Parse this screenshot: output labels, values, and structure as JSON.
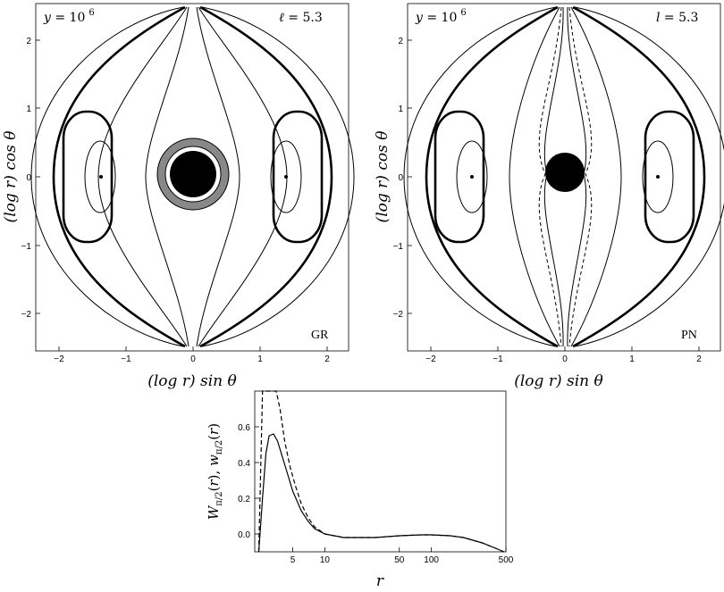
{
  "figure": {
    "panels": [
      {
        "id": "GR",
        "corner_tag": "GR",
        "top_left": {
          "var": "y",
          "eq": " = 10",
          "exp": "6"
        },
        "top_right": {
          "var": "ℓ",
          "eq": " = 5.3"
        },
        "xlabel": "(log r) sin θ",
        "ylabel": "(log r) cos θ",
        "xticks": [
          "−2",
          "−1",
          "0",
          "1",
          "2"
        ],
        "yticks": [
          "2",
          "1",
          "0",
          "−1",
          "−2"
        ]
      },
      {
        "id": "PN",
        "corner_tag": "PN",
        "top_left": {
          "var": "y",
          "eq": " = 10",
          "exp": "6"
        },
        "top_right": {
          "var": "l",
          "eq": " = 5.3"
        },
        "xlabel": "(log r) sin θ",
        "ylabel": "(log r) cos θ",
        "xticks": [
          "−2",
          "−1",
          "0",
          "1",
          "2"
        ],
        "yticks": [
          "2",
          "1",
          "0",
          "−1",
          "−2"
        ]
      }
    ],
    "bottom": {
      "ylabel": "W_{π/2}(r), w_{π/2}(r)",
      "xlabel": "r",
      "xticks": [
        "5",
        "10",
        "50",
        "100",
        "500"
      ],
      "yticks": [
        "0.6",
        "0.4",
        "0.2",
        "0.0"
      ]
    }
  },
  "chart_data": [
    {
      "type": "contour",
      "panel": "GR",
      "x_axis": "(log r) sin θ",
      "y_axis": "(log r) cos θ",
      "xlim": [
        -2.3,
        2.3
      ],
      "ylim": [
        -2.6,
        2.6
      ],
      "center_points": [
        [
          -1.35,
          0
        ],
        [
          1.35,
          0
        ]
      ]
    },
    {
      "type": "contour",
      "panel": "PN",
      "x_axis": "(log r) sin θ",
      "y_axis": "(log r) cos θ",
      "xlim": [
        -2.3,
        2.3
      ],
      "ylim": [
        -2.6,
        2.6
      ],
      "center_points": [
        [
          -1.35,
          0
        ],
        [
          1.35,
          0
        ]
      ]
    },
    {
      "type": "line",
      "panel": "bottom",
      "x_axis": "r",
      "y_axis": "W_{π/2}(r), w_{π/2}(r)",
      "xscale": "log",
      "xlim": [
        2.2,
        500
      ],
      "ylim": [
        -0.1,
        0.8
      ],
      "series": [
        {
          "style": "solid",
          "x": [
            2.4,
            2.6,
            2.8,
            3.0,
            3.3,
            3.6,
            4.0,
            4.5,
            5,
            6,
            7,
            8,
            10,
            15,
            20,
            30,
            50,
            80,
            100,
            150,
            200,
            300,
            400,
            480
          ],
          "y": [
            -0.1,
            0.2,
            0.45,
            0.55,
            0.56,
            0.52,
            0.43,
            0.33,
            0.24,
            0.13,
            0.07,
            0.03,
            0.0,
            -0.02,
            -0.02,
            -0.02,
            -0.01,
            -0.005,
            -0.005,
            -0.01,
            -0.02,
            -0.05,
            -0.08,
            -0.1
          ]
        },
        {
          "style": "dashed",
          "x": [
            2.4,
            2.6,
            2.8,
            3.2,
            3.5,
            3.8,
            4.2,
            4.7,
            5.3,
            6,
            7,
            8,
            10,
            15,
            20,
            30,
            50,
            80,
            100,
            150,
            200,
            300,
            400,
            480
          ],
          "y": [
            -0.1,
            0.8,
            0.8,
            0.8,
            0.8,
            0.7,
            0.52,
            0.38,
            0.27,
            0.17,
            0.09,
            0.04,
            0.0,
            -0.02,
            -0.02,
            -0.02,
            -0.01,
            -0.005,
            -0.005,
            -0.01,
            -0.02,
            -0.05,
            -0.08,
            -0.1
          ]
        }
      ]
    }
  ]
}
